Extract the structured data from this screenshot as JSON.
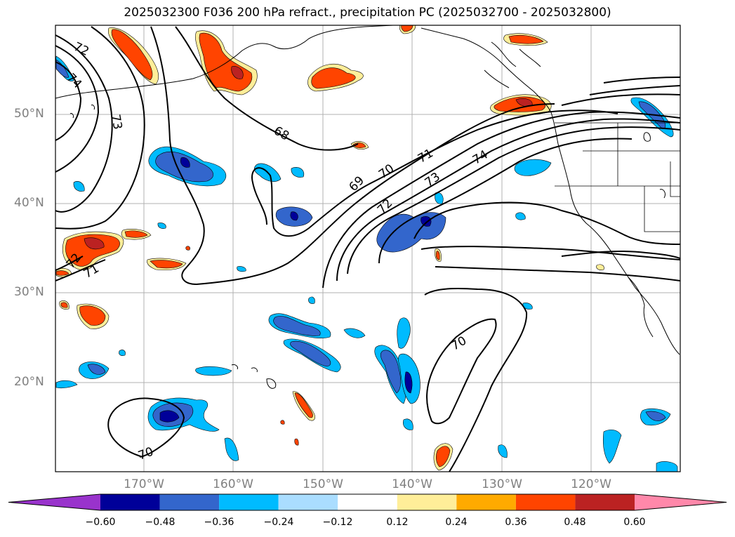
{
  "title": "2025032300 F036 200 hPa refract., precipitation PC (2025032700 - 2025032800)",
  "lat_labels": [
    {
      "label": "50°N",
      "lat": 50
    },
    {
      "label": "40°N",
      "lat": 40
    },
    {
      "label": "30°N",
      "lat": 30
    },
    {
      "label": "20°N",
      "lat": 20
    }
  ],
  "lon_labels": [
    {
      "label": "170°W",
      "lon": -170
    },
    {
      "label": "160°W",
      "lon": -160
    },
    {
      "label": "150°W",
      "lon": -150
    },
    {
      "label": "140°W",
      "lon": -140
    },
    {
      "label": "130°W",
      "lon": -130
    },
    {
      "label": "120°W",
      "lon": -120
    }
  ],
  "contour_labels": [
    "72",
    "74",
    "73",
    "68",
    "69",
    "70",
    "71",
    "72",
    "73",
    "74",
    "70",
    "70",
    "71",
    "72"
  ],
  "colorbar": {
    "ticks": [
      "−0.60",
      "−0.48",
      "−0.36",
      "−0.24",
      "−0.12",
      "0.12",
      "0.24",
      "0.36",
      "0.48",
      "0.60"
    ],
    "colors": [
      "#9933cc",
      "#000099",
      "#3366cc",
      "#00bbff",
      "#aaddff",
      "#ffffff",
      "#ffee99",
      "#ffaa00",
      "#ff4400",
      "#bb2222",
      "#ff88aa"
    ]
  },
  "colors": {
    "neg_strong": "#000099",
    "neg_mid": "#3366cc",
    "neg_light": "#00bbff",
    "pos_light": "#ffee99",
    "pos_mid": "#ffaa00",
    "pos_strong": "#ff4400",
    "pos_stronger": "#bb2222"
  }
}
